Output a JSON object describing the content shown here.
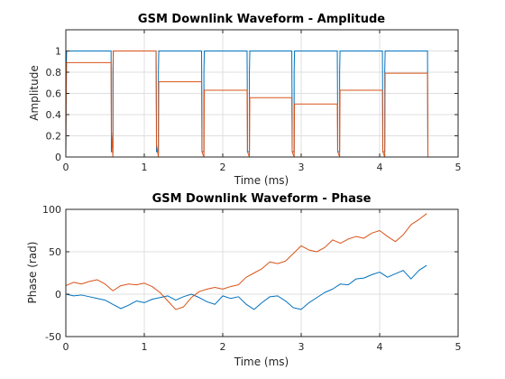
{
  "chart_data": [
    {
      "type": "line",
      "title": "GSM Downlink Waveform - Amplitude",
      "xlabel": "Time (ms)",
      "ylabel": "Amplitude",
      "xlim": [
        0,
        5
      ],
      "ylim": [
        0,
        1.2
      ],
      "xticks": [
        0,
        1,
        2,
        3,
        4,
        5
      ],
      "yticks": [
        0,
        0.2,
        0.4,
        0.6,
        0.8,
        1
      ],
      "grid": true,
      "series": [
        {
          "color": "#0072BD",
          "x": [
            0,
            0.003,
            0.006,
            0.01,
            0.577,
            0.58,
            0.58,
            0.6,
            0.6,
            0.605,
            1.15,
            1.155,
            1.155,
            1.18,
            1.18,
            1.185,
            1.73,
            1.735,
            1.735,
            1.76,
            1.76,
            1.765,
            2.31,
            2.315,
            2.315,
            2.34,
            2.34,
            2.345,
            2.88,
            2.885,
            2.885,
            2.91,
            2.91,
            2.915,
            3.46,
            3.465,
            3.465,
            3.49,
            3.49,
            3.495,
            4.035,
            4.04,
            4.04,
            4.065,
            4.065,
            4.07,
            4.61,
            4.615
          ],
          "y": [
            0,
            0.42,
            0.85,
            1,
            1,
            0.35,
            0.05,
            0.05,
            0.8,
            1,
            1,
            0.35,
            0.05,
            0.05,
            0.8,
            1,
            1,
            0.35,
            0.05,
            0.05,
            0.8,
            1,
            1,
            0.35,
            0.05,
            0.05,
            0.8,
            1,
            1,
            0.35,
            0.05,
            0.05,
            0.8,
            1,
            1,
            0.35,
            0.05,
            0.05,
            0.8,
            1,
            1,
            0.35,
            0.05,
            0.05,
            0.8,
            1,
            1,
            0
          ]
        },
        {
          "color": "#D95319",
          "x": [
            0,
            0.003,
            0.01,
            0.577,
            0.58,
            0.6,
            0.605,
            1.15,
            1.155,
            1.18,
            1.185,
            1.73,
            1.735,
            1.76,
            1.765,
            2.31,
            2.315,
            2.34,
            2.345,
            2.88,
            2.885,
            2.91,
            2.915,
            3.46,
            3.465,
            3.49,
            3.495,
            4.035,
            4.04,
            4.065,
            4.07,
            4.61,
            4.615
          ],
          "y": [
            0,
            0.4,
            0.89,
            0.89,
            0.25,
            0,
            1,
            1,
            0.12,
            0,
            0.71,
            0.71,
            0.05,
            0,
            0.63,
            0.63,
            0.05,
            0,
            0.56,
            0.56,
            0.05,
            0,
            0.5,
            0.5,
            0.05,
            0,
            0.63,
            0.63,
            0.05,
            0,
            0.79,
            0.79,
            0
          ]
        }
      ]
    },
    {
      "type": "line",
      "title": "GSM Downlink Waveform - Phase",
      "xlabel": "Time (ms)",
      "ylabel": "Phase (rad)",
      "xlim": [
        0,
        5
      ],
      "ylim": [
        -50,
        100
      ],
      "xticks": [
        0,
        1,
        2,
        3,
        4,
        5
      ],
      "yticks": [
        -50,
        0,
        50,
        100
      ],
      "grid": true,
      "series": [
        {
          "color": "#0072BD",
          "x": [
            0,
            0.1,
            0.2,
            0.3,
            0.4,
            0.5,
            0.6,
            0.7,
            0.8,
            0.9,
            1.0,
            1.1,
            1.2,
            1.3,
            1.4,
            1.5,
            1.6,
            1.7,
            1.8,
            1.9,
            2.0,
            2.1,
            2.2,
            2.3,
            2.4,
            2.5,
            2.6,
            2.7,
            2.8,
            2.9,
            3.0,
            3.1,
            3.2,
            3.3,
            3.4,
            3.5,
            3.6,
            3.7,
            3.8,
            3.9,
            4.0,
            4.1,
            4.2,
            4.3,
            4.4,
            4.5,
            4.6
          ],
          "y": [
            0,
            -2,
            -1,
            -3,
            -5,
            -7,
            -12,
            -17,
            -13,
            -8,
            -10,
            -6,
            -4,
            -2,
            -7,
            -3,
            0,
            -4,
            -9,
            -12,
            -2,
            -5,
            -3,
            -12,
            -18,
            -10,
            -3,
            -2,
            -8,
            -16,
            -18,
            -10,
            -4,
            2,
            6,
            12,
            11,
            18,
            19,
            23,
            26,
            20,
            24,
            28,
            18,
            28,
            34
          ]
        },
        {
          "color": "#D95319",
          "x": [
            0,
            0.1,
            0.2,
            0.3,
            0.4,
            0.5,
            0.6,
            0.7,
            0.8,
            0.9,
            1.0,
            1.1,
            1.2,
            1.3,
            1.4,
            1.5,
            1.6,
            1.7,
            1.8,
            1.9,
            2.0,
            2.1,
            2.2,
            2.3,
            2.4,
            2.5,
            2.6,
            2.7,
            2.8,
            2.9,
            3.0,
            3.1,
            3.2,
            3.3,
            3.4,
            3.5,
            3.6,
            3.7,
            3.8,
            3.9,
            4.0,
            4.1,
            4.2,
            4.3,
            4.4,
            4.5,
            4.6
          ],
          "y": [
            10,
            14,
            12,
            15,
            17,
            12,
            4,
            10,
            12,
            11,
            13,
            9,
            2,
            -8,
            -18,
            -15,
            -4,
            3,
            6,
            8,
            6,
            9,
            11,
            20,
            25,
            30,
            38,
            36,
            39,
            48,
            57,
            52,
            50,
            55,
            64,
            60,
            65,
            68,
            66,
            72,
            75,
            68,
            62,
            70,
            82,
            88,
            95
          ]
        }
      ]
    }
  ]
}
